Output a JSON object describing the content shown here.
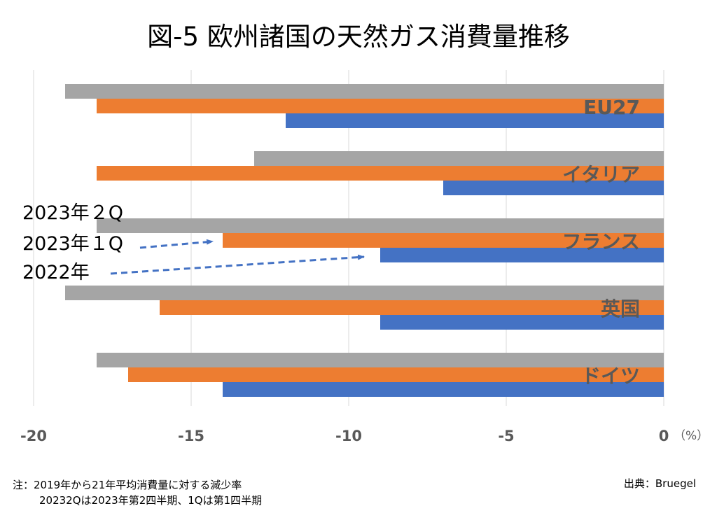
{
  "title": "図-5 欧州諸国の天然ガス消費量推移",
  "unit_label": "（%）",
  "note_line1": "注：2019年から21年平均消費量に対する減少率",
  "note_line2": "20232Qは2023年第2四半期、1Qは第1四半期",
  "source": "出典：Bruegel",
  "chart_data": {
    "type": "bar",
    "orientation": "horizontal",
    "categories": [
      "EU27",
      "イタリア",
      "フランス",
      "英国",
      "ドイツ"
    ],
    "series": [
      {
        "name": "2023年２Q",
        "color": "#a5a5a5",
        "values": [
          -19,
          -13,
          -18,
          -19,
          -18
        ]
      },
      {
        "name": "2023年１Q",
        "color": "#ed7d31",
        "values": [
          -18,
          -18,
          -14,
          -16,
          -17
        ]
      },
      {
        "name": "2022年",
        "color": "#4472c4",
        "values": [
          -12,
          -7,
          -9,
          -9,
          -14
        ]
      }
    ],
    "xlim": [
      -20,
      0
    ],
    "xticks": [
      -20,
      -15,
      -10,
      -5,
      0
    ],
    "tick_labels": [
      "-20",
      "-15",
      "-10",
      "-5",
      "0"
    ],
    "grid": true,
    "legend_placement": "left, with arrows"
  }
}
